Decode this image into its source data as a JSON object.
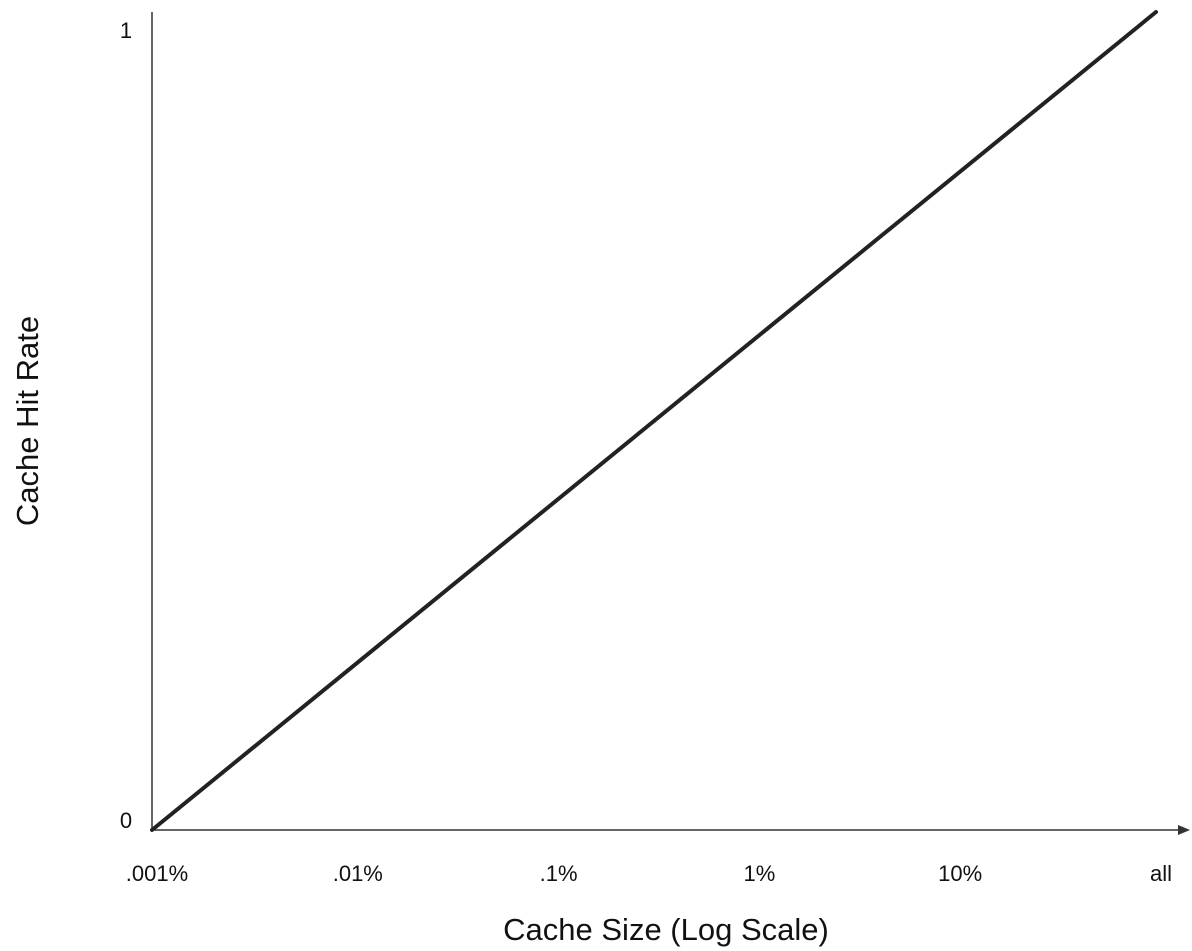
{
  "chart_data": {
    "type": "line",
    "title": "",
    "xlabel": "Cache Size (Log Scale)",
    "ylabel": "Cache Hit Rate",
    "x_scale": "log",
    "x_ticks": [
      ".001%",
      ".01%",
      ".1%",
      "1%",
      "10%",
      "all"
    ],
    "y_ticks": [
      "0",
      "1"
    ],
    "ylim": [
      0,
      1
    ],
    "grid": false,
    "legend": "none",
    "series": [
      {
        "x": [
          ".001%",
          "all"
        ],
        "y": [
          0,
          1
        ]
      }
    ]
  },
  "colors": {
    "axis": "#333333",
    "line": "#222222",
    "text": "#111111"
  }
}
